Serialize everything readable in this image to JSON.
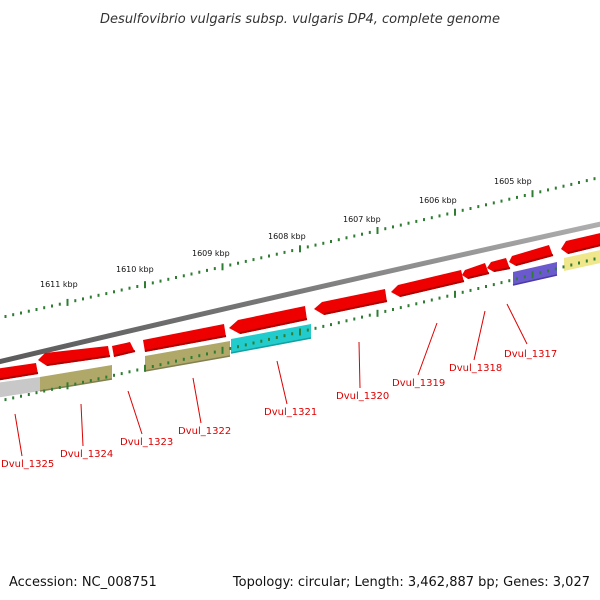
{
  "title": "Desulfovibrio vulgaris subsp. vulgaris DP4, complete genome",
  "footer": {
    "accession": "Accession: NC_008751",
    "topology": "Topology: circular; Length: 3,462,887 bp; Genes: 3,027"
  },
  "colors": {
    "gene_red": "#ee0000",
    "olive": "#a8a060",
    "cyan": "#22cccc",
    "purple": "#6a5acd",
    "pale_yellow": "#f0e68c",
    "grey": "#c8c8c8",
    "scale_green": "#2e7d32",
    "backbone": "#808080",
    "label_red": "#dd0000"
  },
  "scale": {
    "unit": "kbp",
    "labels": [
      "1611 kbp",
      "1610 kbp",
      "1609 kbp",
      "1608 kbp",
      "1607 kbp",
      "1606 kbp",
      "1605 kbp"
    ]
  },
  "genes": [
    {
      "label": "Dvul_1325"
    },
    {
      "label": "Dvul_1324"
    },
    {
      "label": "Dvul_1323"
    },
    {
      "label": "Dvul_1322"
    },
    {
      "label": "Dvul_1321"
    },
    {
      "label": "Dvul_1320"
    },
    {
      "label": "Dvul_1319"
    },
    {
      "label": "Dvul_1318"
    },
    {
      "label": "Dvul_1317"
    }
  ]
}
